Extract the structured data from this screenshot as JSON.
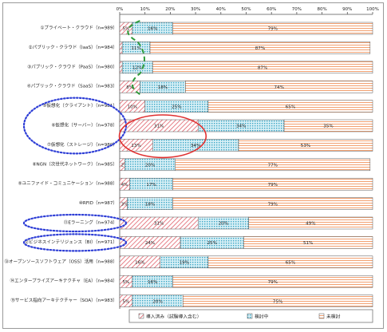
{
  "chart_data": {
    "type": "bar",
    "stacked": true,
    "horizontal": true,
    "x_ticks": [
      "0%",
      "10%",
      "20%",
      "30%",
      "40%",
      "50%",
      "60%",
      "70%",
      "80%",
      "90%",
      "100%"
    ],
    "xlim": [
      0,
      100
    ],
    "grid": false,
    "legend_position": "bottom",
    "categories": [
      "①プライベート・クラウド（n=989）",
      "②パブリック・クラウド（IaaS）（n=984）",
      "③パブリック・クラウド（PaaS）（n=980）",
      "④パブリック・クラウド（SaaS）（n=983）",
      "⑤仮想化（クライアント）（n=981）",
      "⑥仮想化（サーバー）（n=978）",
      "⑦仮想化（ストレージ）（n=980）",
      "⑧NGN（次世代ネットワーク）（n=985）",
      "⑨ユニファイド・コミュニケーション（n=988）",
      "⑩RFID（n=987）",
      "⑪Eラーニング（n=974）",
      "⑫ビジネスインテリジェンス（BI）（n=971）",
      "⑬オープンソースソフトウェア（OSS）活用（n=988）",
      "⑭エンタープライズアーキテクチャ（EA）（n=984）",
      "⑮サービス指向アーキテクチャー（SOA）（n=983）"
    ],
    "series": [
      {
        "name": "導入済み（試験導入含む）",
        "color": "#e0606a",
        "pattern": "diagonal-hatch",
        "values": [
          5,
          1,
          1,
          8,
          10,
          31,
          13,
          2,
          4,
          3,
          31,
          24,
          16,
          5,
          5
        ],
        "labels": [
          "5%",
          "1%",
          "1%",
          "8%",
          "10%",
          "31%",
          "13%",
          "2%",
          "4%",
          "3%",
          "31%",
          "24%",
          "16%",
          "5%",
          "5%"
        ]
      },
      {
        "name": "検討中",
        "color": "#3aa6c6",
        "pattern": "dots",
        "values": [
          16,
          11,
          12,
          18,
          25,
          34,
          34,
          20,
          17,
          18,
          20,
          25,
          19,
          16,
          20
        ],
        "labels": [
          "16%",
          "11%",
          "12%",
          "18%",
          "25%",
          "34%",
          "34%",
          "20%",
          "17%",
          "18%",
          "20%",
          "25%",
          "19%",
          "16%",
          "20%"
        ]
      },
      {
        "name": "未検討",
        "color": "#f2a070",
        "pattern": "horizontal-lines",
        "values": [
          79,
          87,
          87,
          74,
          65,
          35,
          53,
          77,
          79,
          79,
          49,
          51,
          65,
          79,
          75
        ],
        "labels": [
          "79%",
          "87%",
          "87%",
          "74%",
          "65%",
          "35%",
          "53%",
          "77%",
          "79%",
          "79%",
          "49%",
          "51%",
          "65%",
          "79%",
          "75%"
        ]
      }
    ],
    "annotations": [
      {
        "shape": "dashed-line",
        "color": "#2e9b3a",
        "rows": [
          0,
          3
        ]
      },
      {
        "shape": "dotted-ellipse",
        "color": "#2f3fd6",
        "rows": [
          4,
          6
        ]
      },
      {
        "shape": "solid-ellipse",
        "color": "#e03030",
        "rows": [
          5,
          6
        ]
      },
      {
        "shape": "dotted-ellipse",
        "color": "#2f3fd6",
        "rows": [
          10
        ]
      },
      {
        "shape": "dotted-ellipse",
        "color": "#2f3fd6",
        "rows": [
          11
        ]
      }
    ]
  }
}
